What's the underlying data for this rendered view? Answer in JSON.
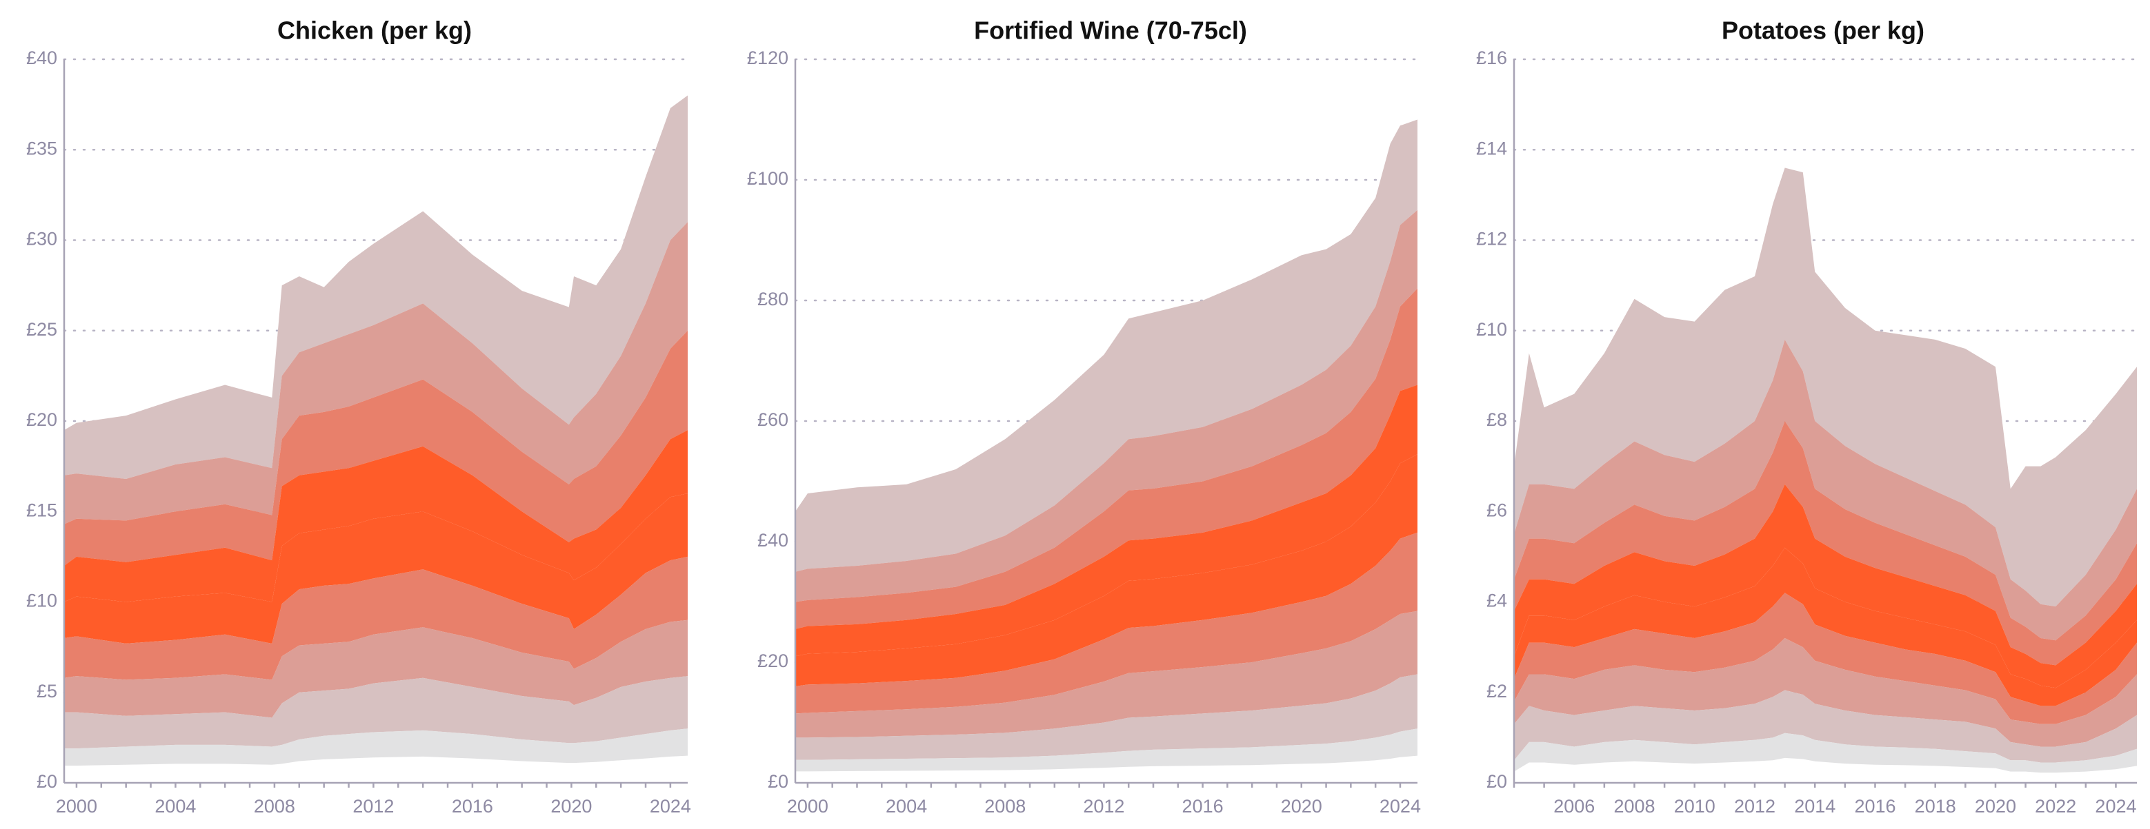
{
  "chart_data": [
    {
      "type": "area",
      "title": "Chicken (per kg)",
      "xlabel": "",
      "ylabel": "",
      "x_range": [
        1999.5,
        2024.7
      ],
      "ylim": [
        0,
        40
      ],
      "y_ticks": [
        0,
        5,
        10,
        15,
        20,
        25,
        30,
        35,
        40
      ],
      "y_tick_labels": [
        "£0",
        "£5",
        "£10",
        "£15",
        "£20",
        "£25",
        "£30",
        "£35",
        "£40"
      ],
      "x_ticks": [
        2000,
        2004,
        2008,
        2012,
        2016,
        2020,
        2024
      ],
      "x_tick_labels": [
        "2000",
        "2004",
        "2008",
        "2012",
        "2016",
        "2020",
        "2024"
      ],
      "grid": true,
      "x": [
        1999.5,
        2000,
        2002,
        2004,
        2006,
        2007.9,
        2008.3,
        2009,
        2010,
        2011,
        2012,
        2014,
        2016,
        2018,
        2019.9,
        2020.1,
        2021,
        2022,
        2023,
        2024,
        2024.7
      ],
      "bands": [
        [
          1.9,
          1.9,
          2.0,
          2.1,
          2.1,
          2.0,
          2.1,
          2.4,
          2.6,
          2.7,
          2.8,
          2.9,
          2.7,
          2.4,
          2.2,
          2.2,
          2.3,
          2.5,
          2.7,
          2.9,
          3.0
        ],
        [
          3.9,
          3.9,
          3.7,
          3.8,
          3.9,
          3.6,
          4.4,
          5.0,
          5.1,
          5.2,
          5.5,
          5.8,
          5.3,
          4.8,
          4.5,
          4.3,
          4.7,
          5.3,
          5.6,
          5.8,
          5.9
        ],
        [
          5.8,
          5.9,
          5.7,
          5.8,
          6.0,
          5.7,
          7.0,
          7.6,
          7.7,
          7.8,
          8.2,
          8.6,
          8.0,
          7.2,
          6.7,
          6.3,
          6.9,
          7.8,
          8.5,
          8.9,
          9.0
        ],
        [
          8.0,
          8.1,
          7.7,
          7.9,
          8.2,
          7.7,
          9.9,
          10.7,
          10.9,
          11.0,
          11.3,
          11.8,
          10.9,
          9.9,
          9.1,
          8.5,
          9.3,
          10.4,
          11.6,
          12.3,
          12.5
        ],
        [
          10.0,
          10.3,
          10.0,
          10.3,
          10.5,
          10.0,
          13.1,
          13.8,
          14.0,
          14.2,
          14.6,
          15.0,
          13.9,
          12.6,
          11.6,
          11.2,
          11.9,
          13.2,
          14.6,
          15.8,
          16.0
        ],
        [
          12.0,
          12.5,
          12.2,
          12.6,
          13.0,
          12.3,
          16.4,
          17.0,
          17.2,
          17.4,
          17.8,
          18.6,
          17.0,
          15.0,
          13.3,
          13.5,
          14.0,
          15.2,
          17.0,
          19.0,
          19.5
        ],
        [
          14.3,
          14.6,
          14.5,
          15.0,
          15.4,
          14.8,
          19.0,
          20.3,
          20.5,
          20.8,
          21.3,
          22.3,
          20.5,
          18.3,
          16.5,
          16.8,
          17.5,
          19.2,
          21.3,
          24.0,
          25.0
        ],
        [
          17.0,
          17.1,
          16.8,
          17.6,
          18.0,
          17.4,
          22.5,
          23.8,
          24.3,
          24.8,
          25.3,
          26.5,
          24.3,
          21.8,
          19.8,
          20.2,
          21.5,
          23.6,
          26.5,
          30.0,
          31.0
        ],
        [
          19.5,
          19.9,
          20.3,
          21.2,
          22.0,
          21.3,
          27.5,
          28.0,
          27.4,
          28.8,
          29.8,
          31.6,
          29.2,
          27.2,
          26.3,
          28.0,
          27.5,
          29.5,
          33.5,
          37.3,
          38.0
        ]
      ]
    },
    {
      "type": "area",
      "title": "Fortified Wine (70-75cl)",
      "xlabel": "",
      "ylabel": "",
      "x_range": [
        1999.5,
        2024.7
      ],
      "ylim": [
        0,
        120
      ],
      "y_ticks": [
        0,
        20,
        40,
        60,
        80,
        100,
        120
      ],
      "y_tick_labels": [
        "£0",
        "£20",
        "£40",
        "£60",
        "£80",
        "£100",
        "£120"
      ],
      "x_ticks": [
        2000,
        2004,
        2008,
        2012,
        2016,
        2020,
        2024
      ],
      "x_tick_labels": [
        "2000",
        "2004",
        "2008",
        "2012",
        "2016",
        "2020",
        "2024"
      ],
      "grid": true,
      "x": [
        1999.5,
        2000,
        2002,
        2004,
        2006,
        2008,
        2010,
        2012,
        2013,
        2014,
        2016,
        2018,
        2020,
        2021,
        2022,
        2023,
        2023.6,
        2024,
        2024.7
      ],
      "bands": [
        [
          3.8,
          3.8,
          3.9,
          4.0,
          4.1,
          4.2,
          4.5,
          5.0,
          5.3,
          5.5,
          5.7,
          5.9,
          6.3,
          6.5,
          6.9,
          7.5,
          8.0,
          8.5,
          9.0
        ],
        [
          7.5,
          7.5,
          7.6,
          7.8,
          8.0,
          8.3,
          9.0,
          10.0,
          10.8,
          11.0,
          11.5,
          12.0,
          12.8,
          13.2,
          14.0,
          15.3,
          16.5,
          17.5,
          18.0
        ],
        [
          11.5,
          11.6,
          11.9,
          12.2,
          12.6,
          13.3,
          14.6,
          16.8,
          18.2,
          18.5,
          19.2,
          20.0,
          21.5,
          22.3,
          23.5,
          25.5,
          27.0,
          28.0,
          28.5
        ],
        [
          16.0,
          16.3,
          16.5,
          16.9,
          17.4,
          18.6,
          20.5,
          23.8,
          25.7,
          26.0,
          27.0,
          28.2,
          30.0,
          31.0,
          33.0,
          36.0,
          38.5,
          40.5,
          41.5
        ],
        [
          21.0,
          21.4,
          21.7,
          22.3,
          23.0,
          24.5,
          27.0,
          31.0,
          33.5,
          33.8,
          34.8,
          36.2,
          38.5,
          40.0,
          42.5,
          46.5,
          50.0,
          53.0,
          54.5
        ],
        [
          25.5,
          26.0,
          26.3,
          27.0,
          28.0,
          29.5,
          33.0,
          37.5,
          40.2,
          40.5,
          41.5,
          43.5,
          46.5,
          48.0,
          51.0,
          55.5,
          61.0,
          65.0,
          66.0
        ],
        [
          30.0,
          30.3,
          30.8,
          31.5,
          32.5,
          35.0,
          39.0,
          45.0,
          48.5,
          48.8,
          50.0,
          52.5,
          56.0,
          58.0,
          61.5,
          67.0,
          73.5,
          79.0,
          82.0
        ],
        [
          35.0,
          35.5,
          36.0,
          36.8,
          38.0,
          41.0,
          46.0,
          53.0,
          57.0,
          57.5,
          59.0,
          62.0,
          66.0,
          68.5,
          72.5,
          79.0,
          86.5,
          92.5,
          95.0
        ],
        [
          45.0,
          48.0,
          49.0,
          49.5,
          52.0,
          57.0,
          63.5,
          71.0,
          77.0,
          78.0,
          80.0,
          83.5,
          87.5,
          88.5,
          91.0,
          97.0,
          106.0,
          109.0,
          110.0
        ]
      ]
    },
    {
      "type": "area",
      "title": "Potatoes (per kg)",
      "xlabel": "",
      "ylabel": "",
      "x_range": [
        2004,
        2024.7
      ],
      "ylim": [
        0,
        16
      ],
      "y_ticks": [
        0,
        2,
        4,
        6,
        8,
        10,
        12,
        14,
        16
      ],
      "y_tick_labels": [
        "£0",
        "£2",
        "£4",
        "£6",
        "£8",
        "£10",
        "£12",
        "£14",
        "£16"
      ],
      "x_ticks": [
        2006,
        2008,
        2010,
        2012,
        2014,
        2016,
        2018,
        2020,
        2022,
        2024
      ],
      "x_tick_labels": [
        "2006",
        "2008",
        "2010",
        "2012",
        "2014",
        "2016",
        "2018",
        "2020",
        "2022",
        "2024"
      ],
      "grid": true,
      "x": [
        2004,
        2004.5,
        2005,
        2006,
        2007,
        2008,
        2009,
        2010,
        2011,
        2012,
        2012.6,
        2013,
        2013.6,
        2014,
        2015,
        2016,
        2017,
        2018,
        2019,
        2020,
        2020.5,
        2021,
        2021.5,
        2022,
        2023,
        2024,
        2024.7
      ],
      "bands": [
        [
          0.5,
          0.9,
          0.9,
          0.8,
          0.9,
          0.95,
          0.9,
          0.85,
          0.9,
          0.95,
          1.0,
          1.1,
          1.05,
          0.95,
          0.85,
          0.8,
          0.78,
          0.75,
          0.7,
          0.65,
          0.5,
          0.5,
          0.45,
          0.45,
          0.5,
          0.6,
          0.75
        ],
        [
          1.3,
          1.7,
          1.6,
          1.5,
          1.6,
          1.7,
          1.65,
          1.6,
          1.65,
          1.75,
          1.9,
          2.05,
          1.95,
          1.75,
          1.6,
          1.5,
          1.45,
          1.4,
          1.35,
          1.2,
          0.9,
          0.85,
          0.8,
          0.8,
          0.9,
          1.2,
          1.5
        ],
        [
          1.8,
          2.4,
          2.4,
          2.3,
          2.5,
          2.6,
          2.5,
          2.45,
          2.55,
          2.7,
          2.95,
          3.2,
          3.0,
          2.7,
          2.5,
          2.35,
          2.25,
          2.15,
          2.05,
          1.85,
          1.4,
          1.35,
          1.3,
          1.3,
          1.5,
          1.9,
          2.4
        ],
        [
          2.3,
          3.1,
          3.1,
          3.0,
          3.2,
          3.4,
          3.3,
          3.2,
          3.35,
          3.55,
          3.9,
          4.2,
          3.95,
          3.5,
          3.25,
          3.1,
          2.95,
          2.85,
          2.7,
          2.45,
          1.9,
          1.8,
          1.7,
          1.7,
          2.0,
          2.5,
          3.1
        ],
        [
          2.8,
          3.7,
          3.7,
          3.6,
          3.9,
          4.15,
          4.0,
          3.9,
          4.1,
          4.35,
          4.8,
          5.2,
          4.85,
          4.3,
          4.0,
          3.8,
          3.65,
          3.5,
          3.35,
          3.05,
          2.4,
          2.3,
          2.15,
          2.1,
          2.5,
          3.1,
          3.6
        ],
        [
          3.8,
          4.5,
          4.5,
          4.4,
          4.8,
          5.1,
          4.9,
          4.8,
          5.05,
          5.4,
          6.0,
          6.6,
          6.1,
          5.4,
          5.0,
          4.75,
          4.55,
          4.35,
          4.15,
          3.8,
          3.0,
          2.85,
          2.65,
          2.6,
          3.1,
          3.8,
          4.4
        ],
        [
          4.5,
          5.4,
          5.4,
          5.3,
          5.75,
          6.15,
          5.9,
          5.8,
          6.1,
          6.5,
          7.3,
          8.0,
          7.4,
          6.5,
          6.05,
          5.75,
          5.5,
          5.25,
          5.0,
          4.6,
          3.65,
          3.45,
          3.2,
          3.15,
          3.7,
          4.5,
          5.3
        ],
        [
          5.5,
          6.6,
          6.6,
          6.5,
          7.05,
          7.55,
          7.25,
          7.1,
          7.5,
          8.0,
          8.9,
          9.8,
          9.1,
          8.0,
          7.45,
          7.05,
          6.75,
          6.45,
          6.15,
          5.65,
          4.5,
          4.25,
          3.95,
          3.9,
          4.6,
          5.6,
          6.5
        ],
        [
          7.0,
          9.5,
          8.3,
          8.6,
          9.5,
          10.7,
          10.3,
          10.2,
          10.9,
          11.2,
          12.8,
          13.6,
          13.5,
          11.3,
          10.5,
          10.0,
          9.9,
          9.8,
          9.6,
          9.2,
          6.5,
          7.0,
          7.0,
          7.2,
          7.8,
          8.6,
          9.2
        ]
      ]
    }
  ],
  "colors": {
    "bands": [
      "#e2e2e3",
      "#d7c1c1",
      "#dc9e96",
      "#e8806b",
      "#ff5c29",
      "#ff5c29",
      "#e8806b",
      "#dc9e96",
      "#d7c1c1"
    ],
    "axis": "#a7a3b5",
    "tick_text": "#8e8aa3",
    "title": "#111111"
  }
}
